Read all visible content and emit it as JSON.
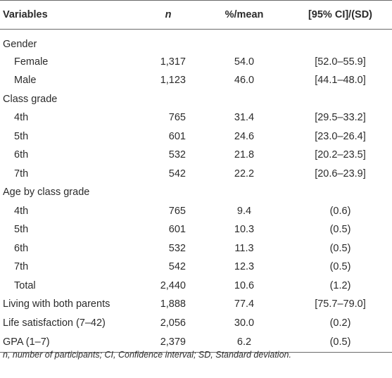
{
  "table": {
    "headers": {
      "variables": "Variables",
      "n": "n",
      "pct_mean": "%/mean",
      "ci_sd": "[95% CI]/(SD)"
    },
    "rows": [
      {
        "label": "Gender",
        "n": "",
        "pct": "",
        "ci": "",
        "indent": false
      },
      {
        "label": "Female",
        "n": "1,317",
        "pct": "54.0",
        "ci": "[52.0–55.9]",
        "indent": true
      },
      {
        "label": "Male",
        "n": "1,123",
        "pct": "46.0",
        "ci": "[44.1–48.0]",
        "indent": true
      },
      {
        "label": "Class grade",
        "n": "",
        "pct": "",
        "ci": "",
        "indent": false
      },
      {
        "label": "4th",
        "n": "765",
        "pct": "31.4",
        "ci": "[29.5–33.2]",
        "indent": true
      },
      {
        "label": "5th",
        "n": "601",
        "pct": "24.6",
        "ci": "[23.0–26.4]",
        "indent": true
      },
      {
        "label": "6th",
        "n": "532",
        "pct": "21.8",
        "ci": "[20.2–23.5]",
        "indent": true
      },
      {
        "label": "7th",
        "n": "542",
        "pct": "22.2",
        "ci": "[20.6–23.9]",
        "indent": true
      },
      {
        "label": "Age by class grade",
        "n": "",
        "pct": "",
        "ci": "",
        "indent": false
      },
      {
        "label": "4th",
        "n": "765",
        "pct": "9.4",
        "ci": "(0.6)",
        "indent": true
      },
      {
        "label": "5th",
        "n": "601",
        "pct": "10.3",
        "ci": "(0.5)",
        "indent": true
      },
      {
        "label": "6th",
        "n": "532",
        "pct": "11.3",
        "ci": "(0.5)",
        "indent": true
      },
      {
        "label": "7th",
        "n": "542",
        "pct": "12.3",
        "ci": "(0.5)",
        "indent": true
      },
      {
        "label": "Total",
        "n": "2,440",
        "pct": "10.6",
        "ci": "(1.2)",
        "indent": true
      },
      {
        "label": "Living with both parents",
        "n": "1,888",
        "pct": "77.4",
        "ci": "[75.7–79.0]",
        "indent": false
      },
      {
        "label": "Life satisfaction (7–42)",
        "n": "2,056",
        "pct": "30.0",
        "ci": "(0.2)",
        "indent": false
      },
      {
        "label": "GPA (1–7)",
        "n": "2,379",
        "pct": "6.2",
        "ci": "(0.5)",
        "indent": false
      }
    ]
  },
  "footnote": "n, number of participants; CI, Confidence interval; SD, Standard deviation."
}
